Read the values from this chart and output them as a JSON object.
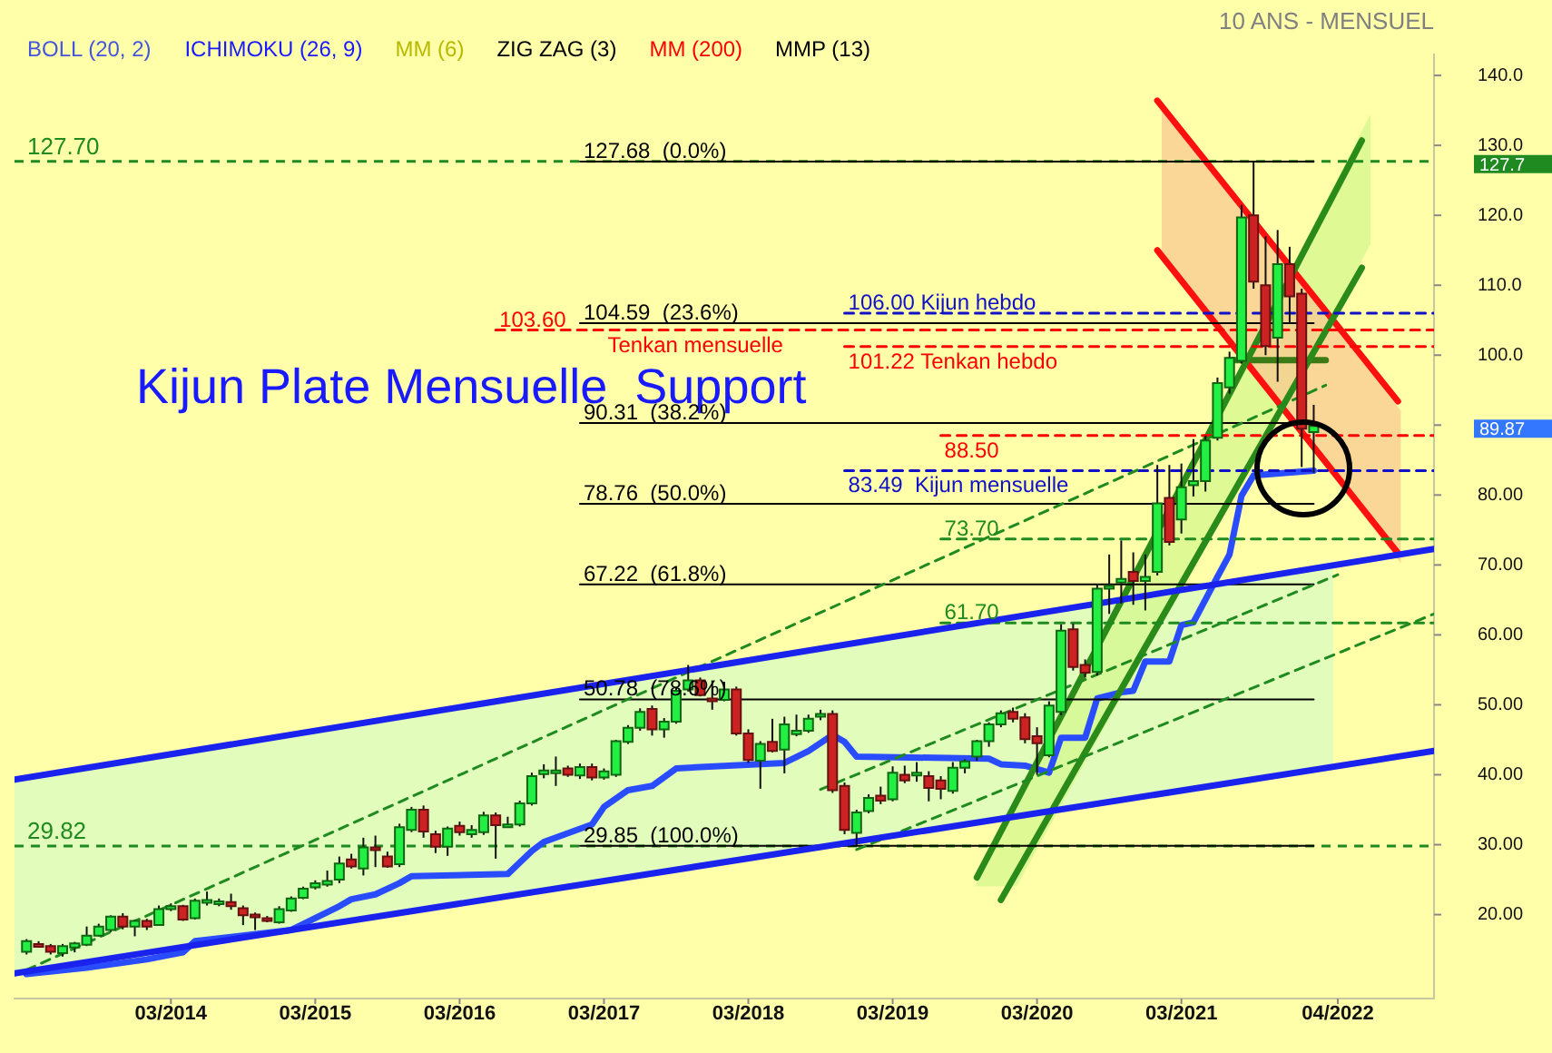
{
  "chart_data": {
    "type": "candlestick",
    "subtitle": "10 ANS - MENSUEL",
    "x": [
      "2013-03",
      "2013-04",
      "2013-05",
      "2013-06",
      "2013-07",
      "2013-08",
      "2013-09",
      "2013-10",
      "2013-11",
      "2013-12",
      "2014-01",
      "2014-02",
      "2014-03",
      "2014-04",
      "2014-05",
      "2014-06",
      "2014-07",
      "2014-08",
      "2014-09",
      "2014-10",
      "2014-11",
      "2014-12",
      "2015-01",
      "2015-02",
      "2015-03",
      "2015-04",
      "2015-05",
      "2015-06",
      "2015-07",
      "2015-08",
      "2015-09",
      "2015-10",
      "2015-11",
      "2015-12",
      "2016-01",
      "2016-02",
      "2016-03",
      "2016-04",
      "2016-05",
      "2016-06",
      "2016-07",
      "2016-08",
      "2016-09",
      "2016-10",
      "2016-11",
      "2016-12",
      "2017-01",
      "2017-02",
      "2017-03",
      "2017-04",
      "2017-05",
      "2017-06",
      "2017-07",
      "2017-08",
      "2017-09",
      "2017-10",
      "2017-11",
      "2017-12",
      "2018-01",
      "2018-02",
      "2018-03",
      "2018-04",
      "2018-05",
      "2018-06",
      "2018-07",
      "2018-08",
      "2018-09",
      "2018-10",
      "2018-11",
      "2018-12",
      "2019-01",
      "2019-02",
      "2019-03",
      "2019-04",
      "2019-05",
      "2019-06",
      "2019-07",
      "2019-08",
      "2019-09",
      "2019-10",
      "2019-11",
      "2019-12",
      "2020-01",
      "2020-02",
      "2020-03",
      "2020-04",
      "2020-05",
      "2020-06",
      "2020-07",
      "2020-08",
      "2020-09",
      "2020-10",
      "2020-11",
      "2020-12",
      "2021-01",
      "2021-02",
      "2021-03",
      "2021-04",
      "2021-05",
      "2021-06",
      "2021-07",
      "2021-08",
      "2021-09",
      "2021-10",
      "2021-11",
      "2021-12",
      "2022-01",
      "2022-02"
    ],
    "ohlc": [
      [
        14.7,
        16.5,
        14.3,
        16.2
      ],
      [
        15.8,
        16.2,
        15.4,
        15.7
      ],
      [
        15.5,
        15.8,
        14.3,
        14.7
      ],
      [
        14.5,
        15.8,
        14.0,
        15.5
      ],
      [
        15.3,
        16.1,
        14.6,
        15.9
      ],
      [
        15.7,
        18.3,
        15.5,
        17.0
      ],
      [
        17.0,
        18.7,
        16.9,
        18.3
      ],
      [
        17.8,
        19.9,
        17.5,
        19.7
      ],
      [
        19.7,
        20.2,
        17.9,
        18.3
      ],
      [
        18.3,
        19.3,
        16.9,
        19.1
      ],
      [
        19.1,
        19.4,
        17.8,
        18.3
      ],
      [
        18.5,
        21.3,
        18.4,
        20.8
      ],
      [
        20.8,
        21.6,
        20.5,
        21.2
      ],
      [
        21.2,
        21.4,
        19.1,
        19.3
      ],
      [
        19.5,
        22.3,
        19.3,
        22.0
      ],
      [
        22.0,
        23.3,
        21.3,
        22.1
      ],
      [
        21.9,
        22.3,
        21.2,
        21.9
      ],
      [
        21.8,
        23.0,
        20.7,
        21.2
      ],
      [
        20.9,
        21.3,
        18.5,
        19.9
      ],
      [
        20.0,
        20.3,
        17.8,
        19.7
      ],
      [
        19.5,
        19.8,
        18.9,
        19.1
      ],
      [
        18.9,
        21.2,
        18.7,
        20.8
      ],
      [
        20.6,
        22.6,
        20.4,
        22.3
      ],
      [
        22.4,
        24.0,
        22.2,
        23.7
      ],
      [
        23.9,
        24.9,
        23.6,
        24.5
      ],
      [
        24.3,
        26.3,
        24.0,
        24.8
      ],
      [
        25.0,
        28.3,
        24.5,
        27.3
      ],
      [
        27.9,
        28.7,
        26.6,
        26.9
      ],
      [
        26.6,
        31.0,
        25.6,
        29.6
      ],
      [
        29.6,
        31.3,
        26.8,
        29.5
      ],
      [
        28.3,
        29.0,
        26.7,
        26.9
      ],
      [
        27.2,
        33.0,
        26.8,
        32.5
      ],
      [
        32.1,
        35.4,
        31.8,
        35.0
      ],
      [
        35.0,
        35.6,
        31.0,
        31.9
      ],
      [
        31.5,
        32.0,
        28.8,
        29.7
      ],
      [
        29.7,
        32.6,
        28.4,
        32.3
      ],
      [
        32.7,
        33.3,
        31.3,
        31.8
      ],
      [
        31.5,
        32.8,
        31.0,
        32.1
      ],
      [
        31.8,
        34.7,
        31.4,
        34.2
      ],
      [
        34.2,
        34.6,
        28.0,
        32.8
      ],
      [
        32.9,
        34.0,
        32.4,
        32.9
      ],
      [
        32.9,
        36.3,
        32.6,
        35.9
      ],
      [
        35.9,
        40.3,
        35.6,
        39.8
      ],
      [
        40.1,
        41.5,
        39.5,
        40.6
      ],
      [
        40.6,
        42.6,
        38.4,
        40.6
      ],
      [
        40.9,
        41.3,
        39.7,
        40.0
      ],
      [
        39.9,
        41.6,
        39.4,
        41.1
      ],
      [
        41.1,
        41.6,
        39.2,
        39.6
      ],
      [
        39.6,
        40.9,
        39.3,
        40.5
      ],
      [
        40.0,
        45.0,
        39.7,
        44.8
      ],
      [
        44.7,
        47.1,
        44.4,
        46.7
      ],
      [
        46.7,
        49.5,
        46.3,
        49.0
      ],
      [
        49.4,
        49.9,
        45.6,
        46.5
      ],
      [
        46.5,
        48.1,
        45.3,
        47.6
      ],
      [
        47.6,
        52.5,
        47.3,
        52.0
      ],
      [
        52.2,
        55.7,
        51.9,
        53.5
      ],
      [
        53.5,
        53.9,
        51.2,
        51.4
      ],
      [
        50.9,
        53.5,
        49.3,
        50.7
      ],
      [
        50.7,
        53.3,
        50.5,
        52.2
      ],
      [
        52.2,
        52.6,
        45.6,
        45.9
      ],
      [
        45.9,
        46.5,
        41.7,
        42.1
      ],
      [
        42.0,
        44.8,
        38.0,
        44.4
      ],
      [
        44.7,
        48.0,
        43.2,
        43.4
      ],
      [
        43.6,
        48.3,
        40.2,
        47.2
      ],
      [
        45.8,
        48.6,
        45.5,
        46.3
      ],
      [
        46.3,
        48.6,
        46.0,
        48.0
      ],
      [
        48.3,
        49.3,
        47.8,
        48.7
      ],
      [
        48.7,
        49.2,
        37.4,
        37.8
      ],
      [
        38.4,
        38.9,
        31.5,
        32.1
      ],
      [
        31.7,
        35.0,
        29.9,
        34.6
      ],
      [
        34.8,
        37.2,
        34.5,
        36.7
      ],
      [
        37.0,
        38.3,
        35.8,
        36.3
      ],
      [
        36.5,
        41.2,
        36.2,
        40.3
      ],
      [
        40.0,
        41.3,
        38.8,
        39.2
      ],
      [
        40.1,
        41.8,
        39.0,
        40.3
      ],
      [
        39.8,
        40.5,
        36.2,
        38.1
      ],
      [
        39.2,
        39.8,
        36.5,
        38.0
      ],
      [
        37.7,
        41.8,
        37.3,
        41.0
      ],
      [
        41.0,
        42.2,
        40.2,
        41.9
      ],
      [
        42.6,
        45.0,
        42.0,
        44.8
      ],
      [
        44.8,
        47.5,
        44.0,
        47.2
      ],
      [
        47.2,
        49.2,
        46.8,
        48.8
      ],
      [
        49.0,
        49.6,
        47.5,
        48.0
      ],
      [
        48.2,
        48.8,
        44.5,
        45.1
      ],
      [
        45.5,
        46.8,
        40.0,
        44.5
      ],
      [
        42.8,
        50.5,
        42.5,
        49.9
      ],
      [
        49.0,
        61.5,
        48.5,
        60.6
      ],
      [
        60.8,
        61.6,
        54.9,
        55.4
      ],
      [
        55.7,
        56.5,
        53.9,
        54.6
      ],
      [
        54.7,
        67.3,
        54.2,
        66.6
      ],
      [
        66.8,
        71.5,
        63.0,
        67.0
      ],
      [
        67.5,
        73.5,
        64.5,
        68.0
      ],
      [
        69.0,
        71.8,
        64.3,
        67.7
      ],
      [
        67.7,
        71.5,
        63.5,
        68.3
      ],
      [
        69.0,
        84.3,
        68.5,
        78.8
      ],
      [
        79.6,
        84.3,
        72.8,
        73.3
      ],
      [
        76.5,
        84.5,
        74.5,
        81.1
      ],
      [
        81.4,
        88.0,
        79.8,
        82.0
      ],
      [
        82.0,
        88.5,
        80.5,
        87.8
      ],
      [
        88.2,
        96.8,
        87.8,
        96.0
      ],
      [
        95.4,
        100.5,
        94.5,
        99.6
      ],
      [
        99.2,
        121.5,
        98.8,
        119.7
      ],
      [
        120.0,
        127.68,
        109.5,
        110.5
      ],
      [
        110.0,
        117.0,
        100.0,
        101.3
      ],
      [
        102.5,
        117.9,
        96.2,
        113.0
      ],
      [
        113.0,
        115.5,
        104.5,
        108.4
      ],
      [
        108.8,
        109.5,
        84.0,
        89.5
      ],
      [
        89.0,
        92.9,
        83.2,
        89.87
      ]
    ],
    "series": [
      {
        "type": "line",
        "color": "#1a22ee",
        "line_style": "solid",
        "x": [
          "2013-02",
          "2022-12"
        ],
        "values": [
          39.3,
          72.3
        ]
      },
      {
        "type": "line",
        "color": "#1a22ee",
        "line_style": "solid",
        "x": [
          "2013-02",
          "2022-12"
        ],
        "values": [
          11.6,
          43.4
        ]
      },
      {
        "type": "line",
        "color": "#1f8a1f",
        "line_style": "dashed",
        "x": [
          "2013-03",
          "2022-03"
        ],
        "values": [
          12.1,
          95.7
        ]
      },
      {
        "type": "line",
        "color": "#1f8a1f",
        "line_style": "dashed",
        "x": [
          "2018-09",
          "2022-04"
        ],
        "values": [
          37.9,
          68.6
        ]
      },
      {
        "type": "line",
        "color": "#1f8a1f",
        "line_style": "dashed",
        "x": [
          "2018-12",
          "2022-12"
        ],
        "values": [
          29.3,
          63.0
        ]
      },
      {
        "type": "line",
        "color": "#000000",
        "line_style": "solid",
        "x": [
          "2017-01",
          "2022-02"
        ],
        "values": [
          127.68,
          127.68
        ]
      },
      {
        "type": "line",
        "color": "#000000",
        "line_style": "solid",
        "x": [
          "2017-01",
          "2022-02"
        ],
        "values": [
          104.59,
          104.59
        ]
      },
      {
        "type": "line",
        "color": "#000000",
        "line_style": "solid",
        "x": [
          "2017-01",
          "2022-02"
        ],
        "values": [
          90.31,
          90.31
        ]
      },
      {
        "type": "line",
        "color": "#000000",
        "line_style": "solid",
        "x": [
          "2017-01",
          "2022-02"
        ],
        "values": [
          78.76,
          78.76
        ]
      },
      {
        "type": "line",
        "color": "#000000",
        "line_style": "solid",
        "x": [
          "2017-01",
          "2022-02"
        ],
        "values": [
          67.22,
          67.22
        ]
      },
      {
        "type": "line",
        "color": "#000000",
        "line_style": "solid",
        "x": [
          "2017-01",
          "2022-02"
        ],
        "values": [
          50.78,
          50.78
        ]
      },
      {
        "type": "line",
        "color": "#000000",
        "line_style": "solid",
        "x": [
          "2017-01",
          "2022-02"
        ],
        "values": [
          29.85,
          29.85
        ]
      },
      {
        "type": "line",
        "color": "#1010c8",
        "line_style": "dashed",
        "x": [
          "2018-11",
          "2022-12"
        ],
        "values": [
          106,
          106
        ]
      },
      {
        "type": "line",
        "color": "#ff0000",
        "line_style": "dashed",
        "x": [
          "2018-11",
          "2022-12"
        ],
        "values": [
          101.22,
          101.22
        ]
      },
      {
        "type": "line",
        "color": "#ff0000",
        "line_style": "dashed",
        "x": [
          "2016-06",
          "2022-12"
        ],
        "values": [
          103.6,
          103.6
        ]
      },
      {
        "type": "line",
        "color": "#ff0000",
        "line_style": "dashed",
        "x": [
          "2019-07",
          "2022-12"
        ],
        "values": [
          88.5,
          88.5
        ]
      },
      {
        "type": "line",
        "color": "#1010c8",
        "line_style": "dashed",
        "x": [
          "2018-11",
          "2022-12"
        ],
        "values": [
          83.49,
          83.49
        ]
      },
      {
        "type": "line",
        "color": "#1f8a1f",
        "line_style": "dashed",
        "x": [
          "2019-07",
          "2022-12"
        ],
        "values": [
          73.7,
          73.7
        ]
      },
      {
        "type": "line",
        "color": "#1f8a1f",
        "line_style": "dashed",
        "x": [
          "2019-07",
          "2022-12"
        ],
        "values": [
          61.7,
          61.7
        ]
      },
      {
        "type": "line",
        "color": "#2a8a1a",
        "line_style": "solid",
        "x": [
          "2019-10",
          "2022-06"
        ],
        "values": [
          25.3,
          130.7
        ]
      },
      {
        "type": "line",
        "color": "#2a8a1a",
        "line_style": "solid",
        "x": [
          "2019-12",
          "2022-06"
        ],
        "values": [
          22.1,
          112.5
        ]
      },
      {
        "type": "line",
        "color": "#2a4cff",
        "line_style": "solid",
        "x": [
          "2013-03",
          "2013-08",
          "2014-01",
          "2014-04",
          "2014-05",
          "2015-01",
          "2015-03",
          "2015-05",
          "2015-06",
          "2015-08",
          "2015-10",
          "2015-11",
          "2016-07",
          "2016-09",
          "2016-10",
          "2017-02",
          "2017-03",
          "2017-05",
          "2017-07",
          "2017-09",
          "2017-11",
          "2018-06",
          "2018-08",
          "2018-10",
          "2018-11",
          "2018-12",
          "2019-11",
          "2019-12",
          "2020-02",
          "2020-04",
          "2020-05",
          "2020-07",
          "2020-08",
          "2020-10",
          "2020-11",
          "2020-12",
          "2021-02",
          "2021-03",
          "2021-04",
          "2021-06",
          "2021-07",
          "2021-08",
          "2021-09",
          "2022-02"
        ],
        "values": [
          11.5,
          12.4,
          13.6,
          14.6,
          16.2,
          17.8,
          19.5,
          21.2,
          22.2,
          22.9,
          24.5,
          25.5,
          25.8,
          29.1,
          30.4,
          32.9,
          35.4,
          37.8,
          38.4,
          40.9,
          41.1,
          41.7,
          43.4,
          45.7,
          44.7,
          42.6,
          42.3,
          41.5,
          41.3,
          40.3,
          45.3,
          45.3,
          50.9,
          51.8,
          52.0,
          56.2,
          56.2,
          61.4,
          61.8,
          68.3,
          71.5,
          79.9,
          82.8,
          83.49
        ]
      },
      {
        "type": "line",
        "color": "#ff1010",
        "line_style": "solid",
        "x": [
          "2021-01",
          "2022-09"
        ],
        "values": [
          136.4,
          93.4
        ]
      },
      {
        "type": "line",
        "color": "#ff1010",
        "line_style": "solid",
        "x": [
          "2021-01",
          "2022-09"
        ],
        "values": [
          115.0,
          71.7
        ]
      },
      {
        "type": "line",
        "color": "#3b7a14",
        "line_style": "solid",
        "x": [
          "2021-07",
          "2022-03"
        ],
        "values": [
          99.3,
          99.3
        ]
      }
    ],
    "ref_lines": [
      {
        "axis": "y",
        "value": 127.7,
        "label": "127.70",
        "color": "#1f8a1f",
        "line_style": "dashed"
      },
      {
        "axis": "y",
        "value": 29.82,
        "label": "29.82",
        "color": "#1f8a1f",
        "line_style": "dashed"
      }
    ],
    "annotations": [
      "BOLL (20, 2)",
      "ICHIMOKU (26, 9)",
      "MM (6)",
      "ZIG ZAG (3)",
      "MM (200)",
      "MMP (13)",
      "Kijun Plate Mensuelle  Support",
      "127.7",
      "89.87",
      {
        "text": "127.68  (0.0%)",
        "x": "2017-01",
        "y": 127.68
      },
      {
        "text": "104.59  (23.6%)",
        "x": "2017-01",
        "y": 104.59
      },
      {
        "text": "90.31  (38.2%)",
        "x": "2017-01",
        "y": 90.31
      },
      {
        "text": "78.76  (50.0%)",
        "x": "2017-01",
        "y": 78.76
      },
      {
        "text": "67.22  (61.8%)",
        "x": "2017-01",
        "y": 67.22
      },
      {
        "text": "50.78  (78.6%)",
        "x": "2017-01",
        "y": 50.78
      },
      {
        "text": "29.85  (100.0%)",
        "x": "2017-01",
        "y": 29.85
      },
      {
        "text": "106.00 Kijun hebdo",
        "x": "2018-11",
        "y": 106
      },
      {
        "text": "101.22 Tenkan hebdo",
        "x": "2018-11",
        "y": 101.22
      },
      {
        "text": "103.60",
        "x": "2016-06",
        "y": 103.6
      },
      {
        "text": "Tenkan mensuelle",
        "x": "2017-03",
        "y": 103.6
      },
      {
        "text": "88.50",
        "x": "2019-07",
        "y": 88.5
      },
      {
        "text": "83.49  Kijun mensuelle",
        "x": "2018-11",
        "y": 83.49
      },
      {
        "text": "73.70",
        "x": "2019-07",
        "y": 73.7
      },
      {
        "text": "61.70",
        "x": "2019-07",
        "y": 61.7
      }
    ],
    "xlim": [
      "2013-02",
      "2022-12"
    ],
    "xticks": [
      {
        "value": "2014-03",
        "label": "03/2014"
      },
      {
        "value": "2015-03",
        "label": "03/2015"
      },
      {
        "value": "2016-03",
        "label": "03/2016"
      },
      {
        "value": "2017-03",
        "label": "03/2017"
      },
      {
        "value": "2018-03",
        "label": "03/2018"
      },
      {
        "value": "2019-03",
        "label": "03/2019"
      },
      {
        "value": "2020-03",
        "label": "03/2020"
      },
      {
        "value": "2021-03",
        "label": "03/2021"
      },
      {
        "value": "2022-04",
        "label": "04/2022"
      }
    ],
    "ylim": [
      8,
      143
    ],
    "yticks": [
      {
        "value": 20,
        "label": "20.00"
      },
      {
        "value": 30,
        "label": "30.00"
      },
      {
        "value": 40,
        "label": "40.00"
      },
      {
        "value": 50,
        "label": "50.00"
      },
      {
        "value": 60,
        "label": "60.00"
      },
      {
        "value": 70,
        "label": "70.00"
      },
      {
        "value": 80,
        "label": "80.00"
      },
      {
        "value": 90,
        "label": null
      },
      {
        "value": 100,
        "label": "100.0"
      },
      {
        "value": 110,
        "label": "110.0"
      },
      {
        "value": 120,
        "label": "120.0"
      },
      {
        "value": 130,
        "label": "130.0"
      },
      {
        "value": 140,
        "label": "140.0"
      }
    ],
    "grid": false
  }
}
